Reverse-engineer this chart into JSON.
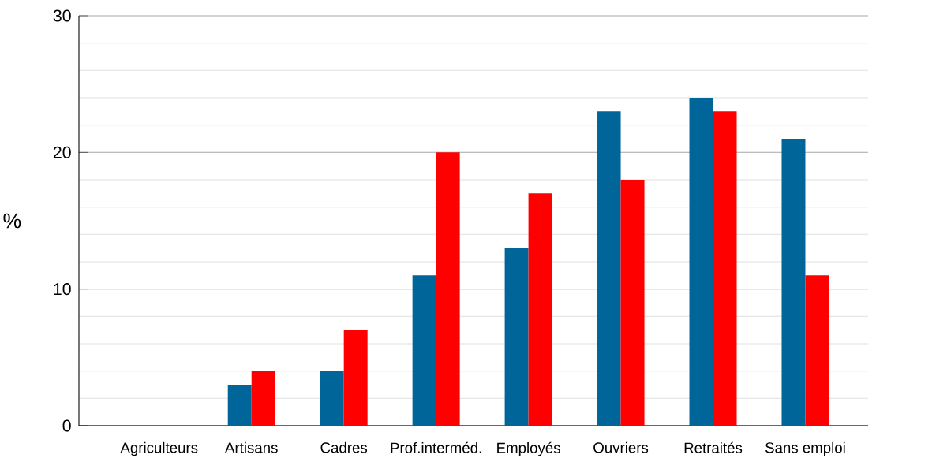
{
  "chart_data": {
    "type": "bar",
    "ylabel": "%",
    "categories": [
      "Agriculteurs",
      "Artisans",
      "Cadres",
      "Prof.interméd.",
      "Employés",
      "Ouvriers",
      "Retraités",
      "Sans emploi"
    ],
    "series": [
      {
        "color": "#006699",
        "values": [
          0,
          3,
          4,
          11,
          13,
          23,
          24,
          21
        ]
      },
      {
        "color": "#ff0000",
        "values": [
          0,
          4,
          7,
          20,
          17,
          18,
          23,
          11
        ]
      }
    ],
    "ylim": [
      0,
      30
    ],
    "yticks": [
      0,
      10,
      20,
      30
    ],
    "grid": "y"
  }
}
